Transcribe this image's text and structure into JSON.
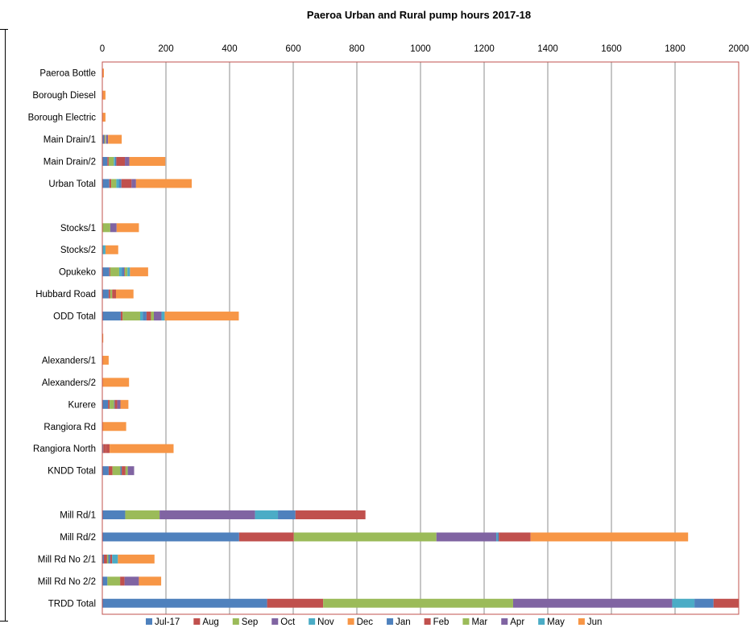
{
  "chart_data": {
    "type": "bar",
    "orientation": "horizontal",
    "stacked": true,
    "title": "Paeroa Urban and Rural pump hours 2017-18",
    "xlabel": "",
    "ylabel": "",
    "xlim": [
      0,
      2000
    ],
    "x_ticks": [
      0,
      200,
      400,
      600,
      800,
      1000,
      1200,
      1400,
      1600,
      1800,
      2000
    ],
    "grid": true,
    "legend_position": "bottom",
    "categories": [
      "Paeroa  Bottle",
      "Borough Diesel",
      "Borough Electric",
      "Main Drain/1",
      "Main Drain/2",
      "Urban Total",
      "",
      "Stocks/1",
      "Stocks/2",
      "Opukeko",
      "Hubbard Road",
      "ODD Total",
      "",
      "Alexanders/1",
      "Alexanders/2",
      "Kurere",
      "Rangiora Rd",
      "Rangiora North",
      "KNDD Total",
      "",
      "Mill Rd/1",
      "Mill Rd/2",
      "Mill Rd No 2/1",
      "Mill Rd No 2/2",
      "TRDD Total"
    ],
    "series": [
      {
        "name": "Jul-17",
        "color": "#4F81BD",
        "values": [
          0,
          0,
          0,
          6,
          16,
          22,
          0,
          0,
          0,
          22,
          20,
          58,
          0,
          0,
          0,
          18,
          0,
          3,
          20,
          0,
          72,
          430,
          5,
          16,
          518
        ]
      },
      {
        "name": "Aug",
        "color": "#C0504D",
        "values": [
          0,
          0,
          0,
          2,
          4,
          6,
          0,
          0,
          0,
          3,
          5,
          6,
          0,
          0,
          0,
          5,
          0,
          8,
          12,
          0,
          0,
          172,
          10,
          0,
          176
        ]
      },
      {
        "name": "Sep",
        "color": "#9BBB59",
        "values": [
          0,
          0,
          0,
          3,
          16,
          16,
          0,
          0,
          0,
          28,
          6,
          55,
          0,
          0,
          0,
          14,
          0,
          0,
          25,
          0,
          108,
          448,
          4,
          40,
          597
        ]
      },
      {
        "name": "Oct",
        "color": "#8064A2",
        "values": [
          0,
          0,
          0,
          0,
          0,
          0,
          0,
          0,
          0,
          0,
          0,
          0,
          0,
          0,
          0,
          0,
          0,
          0,
          0,
          0,
          300,
          188,
          0,
          0,
          500
        ]
      },
      {
        "name": "Nov",
        "color": "#4BACC6",
        "values": [
          0,
          0,
          0,
          1,
          4,
          8,
          0,
          0,
          0,
          8,
          0,
          8,
          0,
          0,
          0,
          0,
          0,
          0,
          0,
          0,
          72,
          4,
          0,
          0,
          70
        ]
      },
      {
        "name": "Dec",
        "color": "#F79646",
        "values": [
          0,
          0,
          0,
          0,
          0,
          0,
          0,
          0,
          0,
          0,
          0,
          0,
          0,
          0,
          0,
          0,
          0,
          0,
          0,
          0,
          0,
          0,
          0,
          0,
          0
        ]
      },
      {
        "name": "Jan",
        "color": "#4F81BD",
        "values": [
          0,
          0,
          0,
          0,
          4,
          8,
          0,
          0,
          0,
          8,
          0,
          12,
          0,
          0,
          0,
          2,
          0,
          0,
          4,
          0,
          55,
          4,
          6,
          0,
          60
        ]
      },
      {
        "name": "Feb",
        "color": "#C0504D",
        "values": [
          0,
          0,
          0,
          0,
          27,
          32,
          0,
          0,
          0,
          2,
          12,
          14,
          0,
          0,
          0,
          8,
          0,
          12,
          12,
          0,
          220,
          100,
          6,
          14,
          80
        ]
      },
      {
        "name": "Mar",
        "color": "#9BBB59",
        "values": [
          0,
          0,
          0,
          0,
          0,
          0,
          0,
          25,
          0,
          8,
          0,
          9,
          0,
          0,
          0,
          0,
          0,
          0,
          7,
          0,
          0,
          0,
          0,
          0,
          0
        ]
      },
      {
        "name": "Apr",
        "color": "#8064A2",
        "values": [
          0,
          0,
          0,
          6,
          14,
          14,
          0,
          20,
          0,
          0,
          0,
          24,
          0,
          0,
          0,
          10,
          0,
          0,
          20,
          0,
          0,
          0,
          0,
          45,
          0
        ]
      },
      {
        "name": "May",
        "color": "#4BACC6",
        "values": [
          0,
          0,
          0,
          0,
          0,
          0,
          0,
          0,
          10,
          8,
          0,
          10,
          0,
          0,
          0,
          0,
          0,
          0,
          0,
          0,
          0,
          0,
          18,
          0,
          0
        ]
      },
      {
        "name": "Jun",
        "color": "#F79646",
        "values": [
          5,
          10,
          10,
          43,
          113,
          175,
          0,
          70,
          40,
          57,
          55,
          233,
          3,
          20,
          84,
          25,
          75,
          201,
          0,
          0,
          0,
          495,
          115,
          70,
          0
        ]
      }
    ]
  }
}
